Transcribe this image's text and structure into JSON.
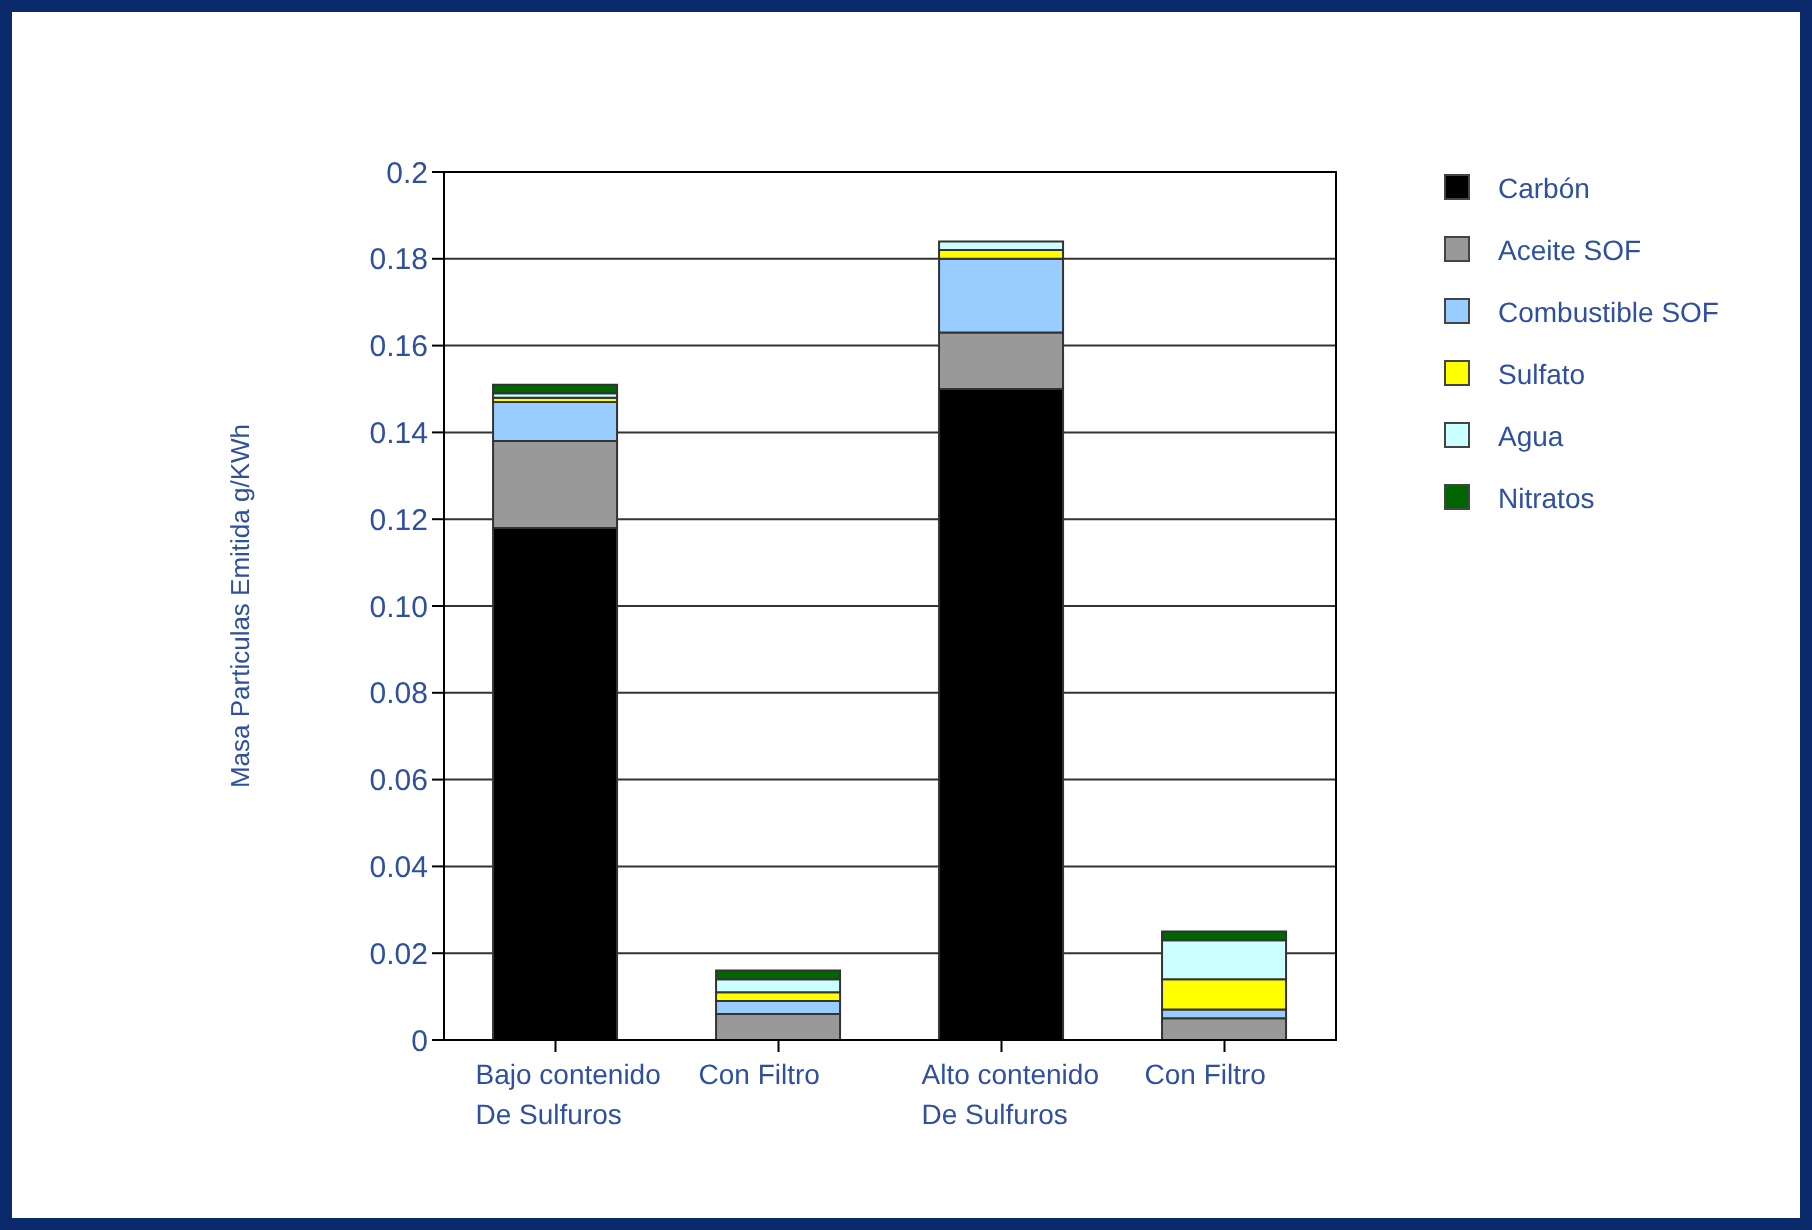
{
  "chart_data": {
    "type": "bar",
    "stacked": true,
    "ylabel": "Masa Particulas Emitida g/KWh",
    "categories": [
      "Bajo contenido\nDe Sulfuros",
      "Con Filtro",
      "Alto contenido\nDe Sulfuros",
      "Con Filtro"
    ],
    "series": [
      {
        "name": "Carbón",
        "color": "#000000",
        "values": [
          0.118,
          null,
          0.15,
          null
        ]
      },
      {
        "name": "Aceite SOF",
        "color": "#999999",
        "values": [
          0.02,
          0.006,
          0.013,
          0.005
        ]
      },
      {
        "name": "Combustible SOF",
        "color": "#99ccff",
        "values": [
          0.009,
          0.003,
          0.017,
          0.002
        ]
      },
      {
        "name": "Sulfato",
        "color": "#ffff00",
        "values": [
          0.001,
          0.002,
          0.002,
          0.007
        ]
      },
      {
        "name": "Agua",
        "color": "#ccffff",
        "values": [
          0.001,
          0.003,
          0.002,
          0.009
        ]
      },
      {
        "name": "Nitratos",
        "color": "#006600",
        "values": [
          0.002,
          0.002,
          0,
          0.002
        ]
      }
    ],
    "ylim": [
      0,
      0.2
    ],
    "yticks": [
      0,
      0.02,
      0.04,
      0.06,
      0.08,
      {
        "value": 0.1,
        "label": "0.10"
      },
      0.12,
      0.14,
      0.16,
      0.18,
      0.2
    ],
    "grid": "y",
    "legend": "right"
  }
}
